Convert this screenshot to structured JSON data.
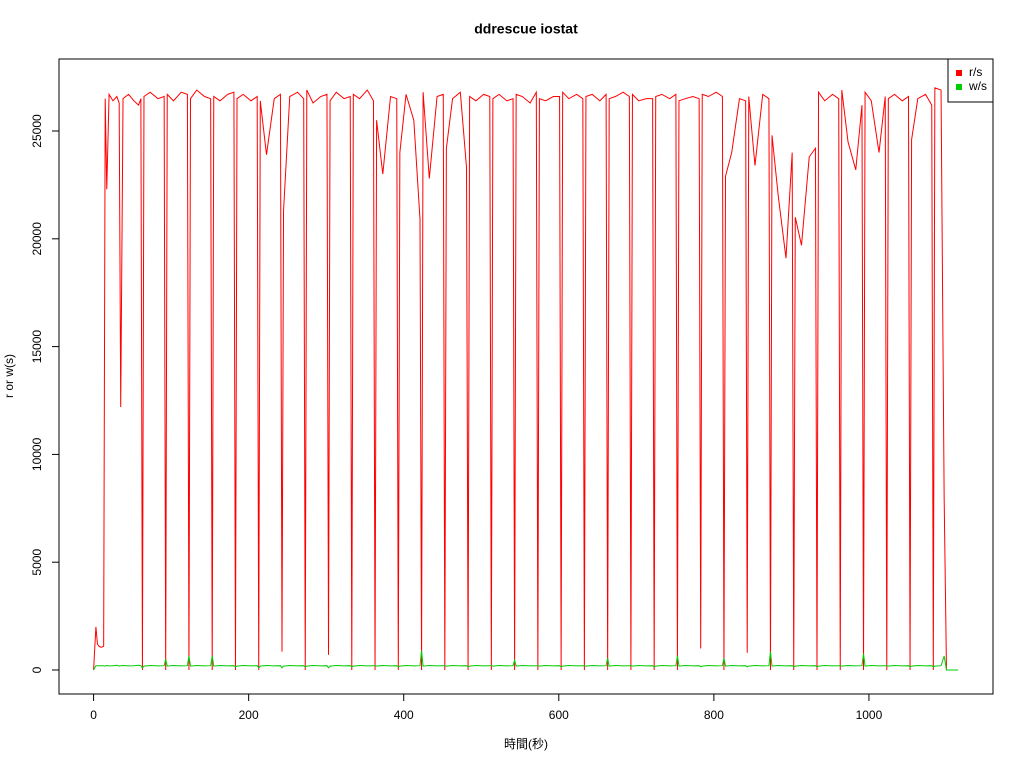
{
  "chart_data": {
    "type": "line",
    "title": "ddrescue iostat",
    "x_label": "時間(秒)",
    "y_label": "r or w(s)",
    "x": [
      0,
      3,
      5,
      7,
      10,
      13,
      15,
      17,
      20,
      25,
      30,
      33,
      35,
      38,
      45,
      52,
      58,
      61,
      63,
      65,
      73,
      83,
      91,
      93,
      95,
      103,
      113,
      121,
      123,
      125,
      133,
      143,
      151,
      153,
      155,
      163,
      173,
      181,
      183,
      185,
      193,
      203,
      211,
      213,
      215,
      223,
      233,
      241,
      243,
      245,
      253,
      263,
      271,
      273,
      275,
      283,
      293,
      301,
      303,
      305,
      313,
      323,
      331,
      333,
      335,
      343,
      353,
      361,
      363,
      365,
      373,
      383,
      391,
      393,
      395,
      403,
      413,
      421,
      423,
      425,
      433,
      443,
      451,
      453,
      455,
      463,
      473,
      481,
      483,
      485,
      493,
      503,
      511,
      513,
      515,
      523,
      533,
      541,
      543,
      545,
      553,
      563,
      571,
      573,
      575,
      583,
      593,
      601,
      603,
      605,
      613,
      623,
      631,
      633,
      635,
      643,
      653,
      661,
      663,
      665,
      673,
      683,
      691,
      693,
      695,
      703,
      713,
      721,
      723,
      725,
      733,
      743,
      751,
      753,
      755,
      763,
      773,
      781,
      783,
      785,
      793,
      803,
      811,
      813,
      815,
      823,
      833,
      841,
      843,
      845,
      853,
      863,
      871,
      873,
      875,
      883,
      893,
      901,
      903,
      905,
      913,
      923,
      931,
      933,
      935,
      943,
      953,
      961,
      963,
      965,
      973,
      983,
      991,
      993,
      995,
      1003,
      1013,
      1021,
      1023,
      1025,
      1033,
      1043,
      1051,
      1053,
      1055,
      1063,
      1073,
      1081,
      1083,
      1085,
      1093,
      1097,
      1100,
      1105,
      1115
    ],
    "series": [
      {
        "name": "r/s",
        "color": "#ff0000",
        "values": [
          0,
          2000,
          1200,
          1100,
          1050,
          1100,
          26500,
          22300,
          26700,
          26400,
          26600,
          26300,
          12200,
          26500,
          26700,
          26400,
          26200,
          26500,
          0,
          26600,
          26800,
          26500,
          26600,
          0,
          26700,
          26400,
          26800,
          26700,
          0,
          26500,
          26900,
          26600,
          26500,
          0,
          26600,
          26400,
          26700,
          26800,
          0,
          26500,
          26700,
          26400,
          26600,
          0,
          26400,
          23900,
          26500,
          26700,
          850,
          21300,
          26600,
          26800,
          26500,
          0,
          26900,
          26300,
          26600,
          26700,
          700,
          26400,
          26800,
          26500,
          26600,
          0,
          26700,
          26500,
          26900,
          26400,
          0,
          25500,
          23000,
          26600,
          26500,
          0,
          24000,
          26700,
          25500,
          20900,
          0,
          26800,
          22800,
          26600,
          26700,
          0,
          24200,
          26500,
          26800,
          23300,
          0,
          26600,
          26400,
          26700,
          26600,
          0,
          26500,
          26700,
          26400,
          26500,
          0,
          26700,
          26600,
          26300,
          26800,
          0,
          26500,
          26400,
          26600,
          26600,
          0,
          26800,
          26500,
          26700,
          26500,
          0,
          26600,
          26700,
          26400,
          26700,
          0,
          26500,
          26600,
          26800,
          26600,
          0,
          26700,
          26400,
          26500,
          26500,
          0,
          26600,
          26700,
          26500,
          26700,
          0,
          26400,
          26500,
          26600,
          26500,
          1000,
          26700,
          26600,
          26800,
          26600,
          0,
          22900,
          24000,
          26500,
          26400,
          800,
          26600,
          23400,
          26700,
          26500,
          0,
          24800,
          22000,
          19100,
          24000,
          0,
          21000,
          19700,
          23800,
          24200,
          0,
          26800,
          26400,
          26700,
          26500,
          0,
          26900,
          24500,
          23200,
          26200,
          0,
          26800,
          26400,
          24000,
          26600,
          0,
          26500,
          26700,
          26400,
          26600,
          0,
          24600,
          26500,
          26700,
          26200,
          0,
          27000,
          26900,
          8000,
          0,
          0,
          0
        ]
      },
      {
        "name": "w/s",
        "color": "#00cd00",
        "values": [
          0,
          200,
          200,
          200,
          200,
          200,
          180,
          210,
          190,
          200,
          220,
          180,
          200,
          210,
          190,
          200,
          220,
          200,
          100,
          180,
          210,
          190,
          200,
          500,
          180,
          210,
          190,
          200,
          650,
          180,
          210,
          190,
          200,
          650,
          180,
          210,
          190,
          200,
          150,
          180,
          210,
          190,
          200,
          100,
          180,
          210,
          190,
          200,
          100,
          180,
          210,
          190,
          200,
          150,
          180,
          210,
          190,
          200,
          100,
          180,
          210,
          190,
          200,
          150,
          180,
          210,
          190,
          200,
          200,
          180,
          210,
          190,
          200,
          150,
          180,
          210,
          190,
          200,
          900,
          180,
          210,
          190,
          200,
          200,
          180,
          210,
          190,
          200,
          150,
          180,
          210,
          190,
          200,
          200,
          180,
          210,
          190,
          200,
          450,
          180,
          210,
          190,
          200,
          200,
          180,
          210,
          190,
          200,
          150,
          180,
          210,
          190,
          200,
          200,
          180,
          210,
          190,
          200,
          550,
          180,
          210,
          190,
          200,
          200,
          180,
          210,
          190,
          200,
          150,
          180,
          210,
          190,
          200,
          650,
          180,
          210,
          190,
          200,
          150,
          180,
          210,
          190,
          200,
          550,
          180,
          210,
          190,
          200,
          150,
          180,
          210,
          190,
          200,
          850,
          180,
          210,
          190,
          200,
          150,
          180,
          210,
          190,
          200,
          150,
          180,
          210,
          190,
          200,
          200,
          180,
          210,
          190,
          200,
          750,
          180,
          210,
          190,
          200,
          200,
          180,
          210,
          190,
          200,
          150,
          180,
          210,
          190,
          200,
          150,
          180,
          200,
          650,
          0,
          0,
          0
        ]
      }
    ],
    "xlim": [
      -44.6,
      1160
    ],
    "xticks": [
      0,
      200,
      400,
      600,
      800,
      1000
    ],
    "ylim": [
      -1113,
      28340
    ],
    "yticks": [
      0,
      5000,
      10000,
      15000,
      20000,
      25000
    ],
    "legend": "topright"
  }
}
